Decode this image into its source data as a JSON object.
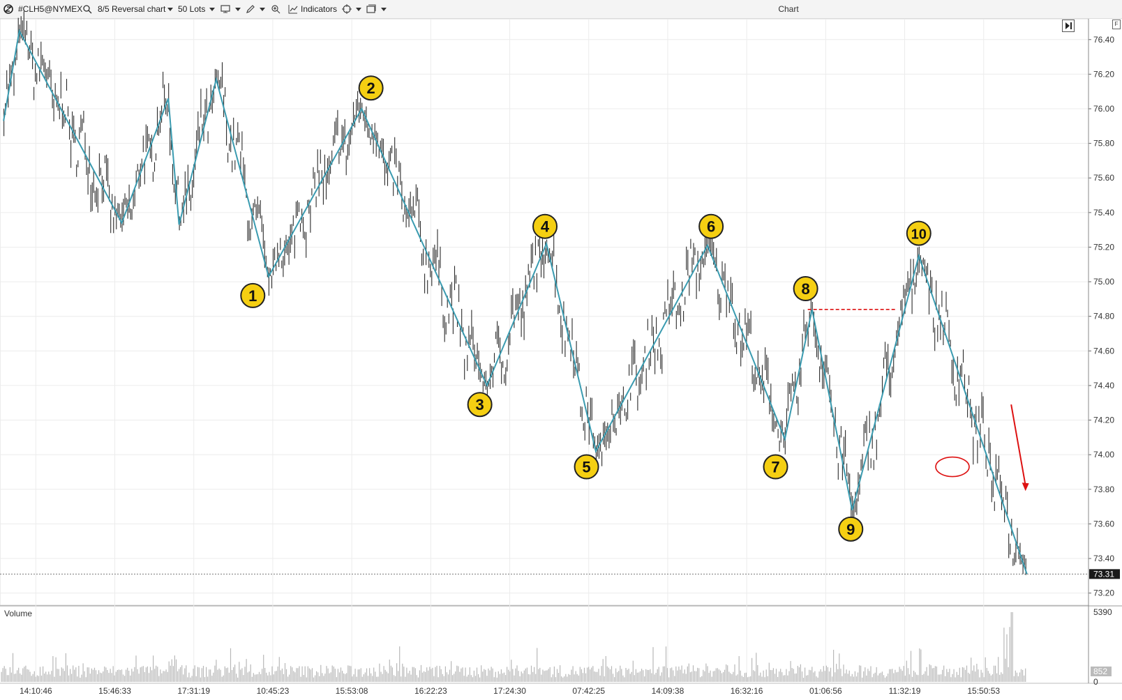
{
  "toolbar": {
    "symbol": "#CLH5@NYMEX",
    "chart_type": "8/5 Reversal chart",
    "lot_size": "50 Lots",
    "indicators_label": "Indicators",
    "title": "Chart"
  },
  "f_label": "F",
  "volume_label": "Volume",
  "current_price_badge": "73.31",
  "volume_axis": [
    "5390",
    "852",
    "0"
  ],
  "colors": {
    "price_bars": "#2a2a2a",
    "zigzag": "#3a9bb0",
    "marker_fill": "#f5cf12",
    "marker_stroke": "#222222",
    "annotation_red": "#dd1111",
    "volume_bars": "#b8b8b8",
    "grid": "#ececec"
  },
  "chart_data": {
    "type": "line",
    "y_axis": {
      "ticks": [
        "76.40",
        "76.20",
        "76.00",
        "75.80",
        "75.60",
        "75.40",
        "75.20",
        "75.00",
        "74.80",
        "74.60",
        "74.40",
        "74.20",
        "74.00",
        "73.80",
        "73.60",
        "73.40",
        "73.20"
      ],
      "range": [
        73.13,
        76.52
      ]
    },
    "x_axis": {
      "ticks": [
        "14:10:46",
        "15:46:33",
        "17:31:19",
        "10:45:23",
        "15:53:08",
        "16:22:23",
        "17:24:30",
        "07:42:25",
        "14:09:38",
        "16:32:16",
        "01:06:56",
        "11:32:19",
        "15:50:53"
      ],
      "range": [
        0,
        1520
      ]
    },
    "last_price": 73.31,
    "zigzag": [
      {
        "x": 5,
        "y": 75.93
      },
      {
        "x": 27,
        "y": 76.45
      },
      {
        "x": 170,
        "y": 75.34
      },
      {
        "x": 235,
        "y": 76.06
      },
      {
        "x": 250,
        "y": 75.33
      },
      {
        "x": 302,
        "y": 76.17
      },
      {
        "x": 375,
        "y": 75.03
      },
      {
        "x": 505,
        "y": 76.0
      },
      {
        "x": 680,
        "y": 74.4
      },
      {
        "x": 763,
        "y": 75.22
      },
      {
        "x": 832,
        "y": 74.02
      },
      {
        "x": 988,
        "y": 75.21
      },
      {
        "x": 1096,
        "y": 74.09
      },
      {
        "x": 1134,
        "y": 74.84
      },
      {
        "x": 1190,
        "y": 73.68
      },
      {
        "x": 1283,
        "y": 75.15
      },
      {
        "x": 1434,
        "y": 73.31
      }
    ],
    "wave_labels": [
      {
        "label": "1",
        "x": 353,
        "y": 74.92
      },
      {
        "label": "2",
        "x": 518,
        "y": 76.12
      },
      {
        "label": "3",
        "x": 670,
        "y": 74.29
      },
      {
        "label": "4",
        "x": 761,
        "y": 75.32
      },
      {
        "label": "5",
        "x": 819,
        "y": 73.93
      },
      {
        "label": "6",
        "x": 993,
        "y": 75.32
      },
      {
        "label": "7",
        "x": 1083,
        "y": 73.93
      },
      {
        "label": "8",
        "x": 1125,
        "y": 74.96
      },
      {
        "label": "9",
        "x": 1188,
        "y": 73.57
      },
      {
        "label": "10",
        "x": 1283,
        "y": 75.28
      }
    ],
    "annotations": {
      "resistance_line": {
        "x_start": 1128,
        "x_end": 1250,
        "y": 74.84
      },
      "ellipse": {
        "x": 1330,
        "y": 73.93
      },
      "arrow": {
        "x_start": 1412,
        "y_start": 74.29,
        "x_end": 1432,
        "y_end": 73.79
      }
    }
  }
}
